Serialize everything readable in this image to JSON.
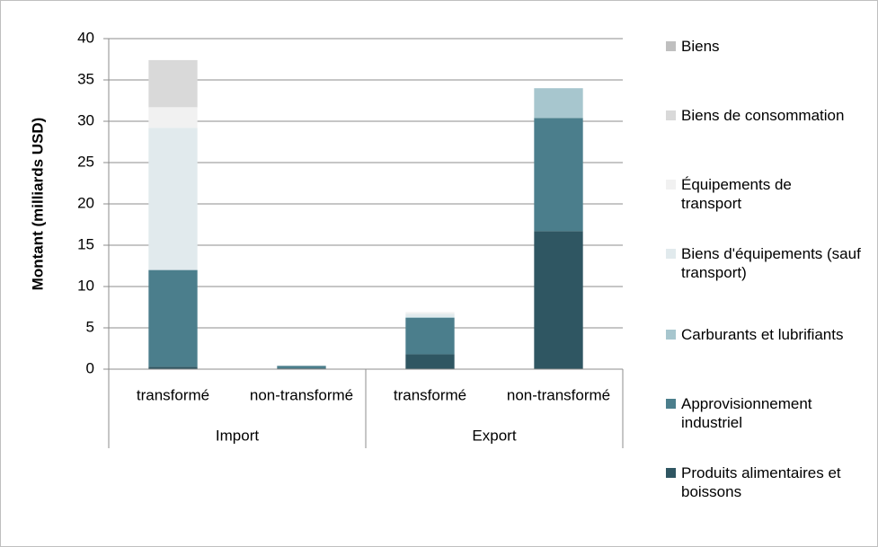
{
  "chart_data": {
    "type": "stacked_bar",
    "y_label": "Montant (milliards USD)",
    "categories": [
      "transformé",
      "non-transformé",
      "transformé",
      "non-transformé"
    ],
    "groups": [
      {
        "label": "Import",
        "size": 2
      },
      {
        "label": "Export",
        "size": 2
      }
    ],
    "ylim": [
      0,
      40
    ],
    "yticks": [
      0,
      5,
      10,
      15,
      20,
      25,
      30,
      35,
      40
    ],
    "grid": true,
    "legend": "right",
    "series": [
      {
        "name": "Produits alimentaires et boissons",
        "color": "#2f5662",
        "values": [
          0.3,
          0.1,
          1.8,
          16.7
        ]
      },
      {
        "name": "Approvisionnement industriel",
        "color": "#4b7e8c",
        "values": [
          11.7,
          0.3,
          4.4,
          13.7
        ]
      },
      {
        "name": "Carburants et lubrifiants",
        "color": "#a7c6ce",
        "values": [
          0,
          0,
          0.1,
          3.6
        ]
      },
      {
        "name": "Biens d'équipements (sauf transport)",
        "color": "#e1eaed",
        "values": [
          17.2,
          0,
          0.4,
          0
        ]
      },
      {
        "name": "Équipements de transport",
        "color": "#f1f1f1",
        "values": [
          2.5,
          0,
          0.2,
          0
        ]
      },
      {
        "name": "Biens de consommation",
        "color": "#d9d9d9",
        "values": [
          5.7,
          0,
          0,
          0
        ]
      },
      {
        "name": "Biens",
        "color": "#bfbfbf",
        "values": [
          0,
          0,
          0,
          0
        ]
      }
    ]
  }
}
